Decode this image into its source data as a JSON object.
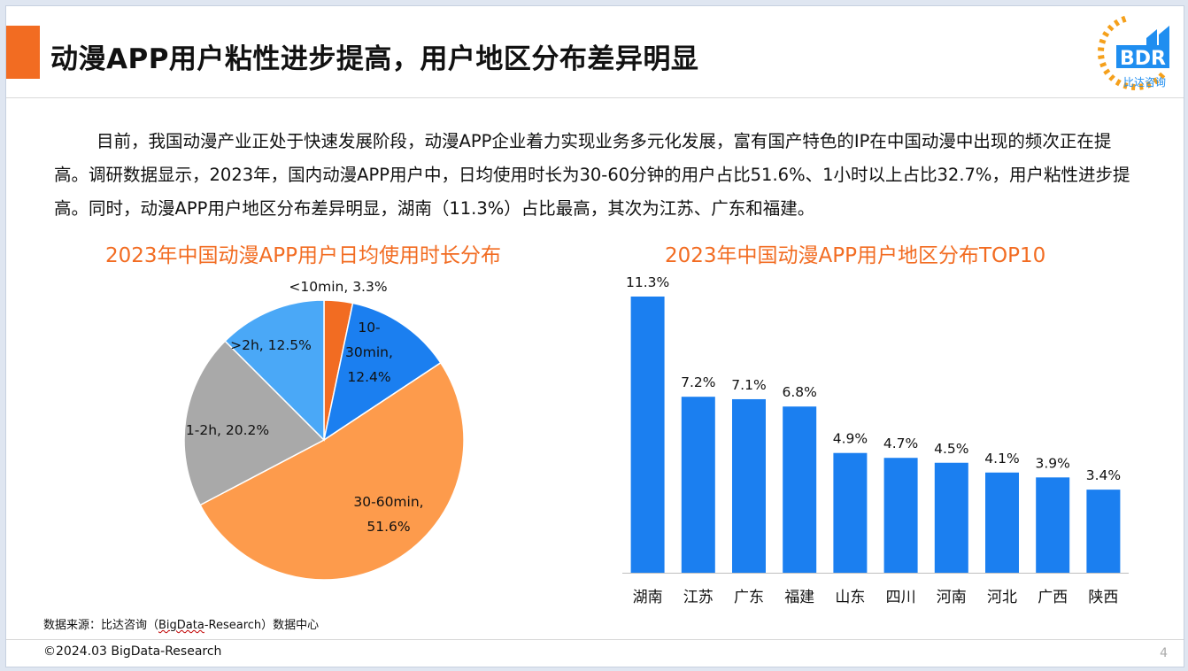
{
  "header": {
    "title": "动漫APP用户粘性进步提高，用户地区分布差异明显",
    "logo_text": "BDR",
    "logo_subtext": "比达咨询"
  },
  "body": {
    "paragraph": "目前，我国动漫产业正处于快速发展阶段，动漫APP企业着力实现业务多元化发展，富有国产特色的IP在中国动漫中出现的频次正在提高。调研数据显示，2023年，国内动漫APP用户中，日均使用时长为30-60分钟的用户占比51.6%、1小时以上占比32.7%，用户粘性进步提高。同时，动漫APP用户地区分布差异明显，湖南（11.3%）占比最高，其次为江苏、广东和福建。"
  },
  "footer": {
    "source_prefix": "数据来源：比达咨询（",
    "source_brand": "BigData",
    "source_suffix": "-Research）数据中心",
    "copyright": "©2024.03 BigData-Research",
    "page_number": "4"
  },
  "colors": {
    "accent": "#f26c22",
    "bar": "#1b7ff0",
    "logo_blue": "#1f8ef0"
  },
  "chart_data": [
    {
      "type": "pie",
      "title": "2023年中国动漫APP用户日均使用时长分布",
      "slices": [
        {
          "label": "<10min",
          "value": 3.3,
          "display": "3.3%",
          "color": "#f26c22"
        },
        {
          "label": "10-30min",
          "value": 12.4,
          "display": "12.4%",
          "color": "#1b7ff0"
        },
        {
          "label": "30-60min",
          "value": 51.6,
          "display": "51.6%",
          "color": "#fd9b4c"
        },
        {
          "label": "1-2h",
          "value": 20.2,
          "display": "20.2%",
          "color": "#a9a9a9"
        },
        {
          "label": ">2h",
          "value": 12.5,
          "display": "12.5%",
          "color": "#4aa8f7"
        }
      ]
    },
    {
      "type": "bar",
      "title": "2023年中国动漫APP用户地区分布TOP10",
      "categories": [
        "湖南",
        "江苏",
        "广东",
        "福建",
        "山东",
        "四川",
        "河南",
        "河北",
        "广西",
        "陕西"
      ],
      "values": [
        11.3,
        7.2,
        7.1,
        6.8,
        4.9,
        4.7,
        4.5,
        4.1,
        3.9,
        3.4
      ],
      "labels": [
        "11.3%",
        "7.2%",
        "7.1%",
        "6.8%",
        "4.9%",
        "4.7%",
        "4.5%",
        "4.1%",
        "3.9%",
        "3.4%"
      ],
      "ylim": [
        0,
        12
      ]
    }
  ]
}
